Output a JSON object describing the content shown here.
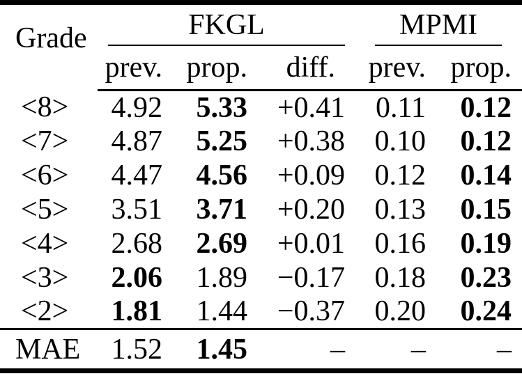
{
  "colors": {
    "text": "#000000",
    "background": "#ffffff",
    "rules": "#000000"
  },
  "table": {
    "grade_header": "Grade",
    "groups": [
      {
        "label": "FKGL"
      },
      {
        "label": "MPMI"
      }
    ],
    "sub_headers": [
      "prev.",
      "prop.",
      "diff.",
      "prev.",
      "prop."
    ],
    "rows": [
      {
        "grade": "<8>",
        "values": [
          "4.92",
          "5.33",
          "+0.41",
          "0.11",
          "0.12"
        ],
        "bold": [
          1,
          4
        ]
      },
      {
        "grade": "<7>",
        "values": [
          "4.87",
          "5.25",
          "+0.38",
          "0.10",
          "0.12"
        ],
        "bold": [
          1,
          4
        ]
      },
      {
        "grade": "<6>",
        "values": [
          "4.47",
          "4.56",
          "+0.09",
          "0.12",
          "0.14"
        ],
        "bold": [
          1,
          4
        ]
      },
      {
        "grade": "<5>",
        "values": [
          "3.51",
          "3.71",
          "+0.20",
          "0.13",
          "0.15"
        ],
        "bold": [
          1,
          4
        ]
      },
      {
        "grade": "<4>",
        "values": [
          "2.68",
          "2.69",
          "+0.01",
          "0.16",
          "0.19"
        ],
        "bold": [
          1,
          4
        ]
      },
      {
        "grade": "<3>",
        "values": [
          "2.06",
          "1.89",
          "−0.17",
          "0.18",
          "0.23"
        ],
        "bold": [
          0,
          4
        ]
      },
      {
        "grade": "<2>",
        "values": [
          "1.81",
          "1.44",
          "−0.37",
          "0.20",
          "0.24"
        ],
        "bold": [
          0,
          4
        ]
      }
    ],
    "footer": {
      "label": "MAE",
      "values": [
        "1.52",
        "1.45",
        "–",
        "–",
        "–"
      ],
      "bold": [
        1
      ]
    }
  }
}
